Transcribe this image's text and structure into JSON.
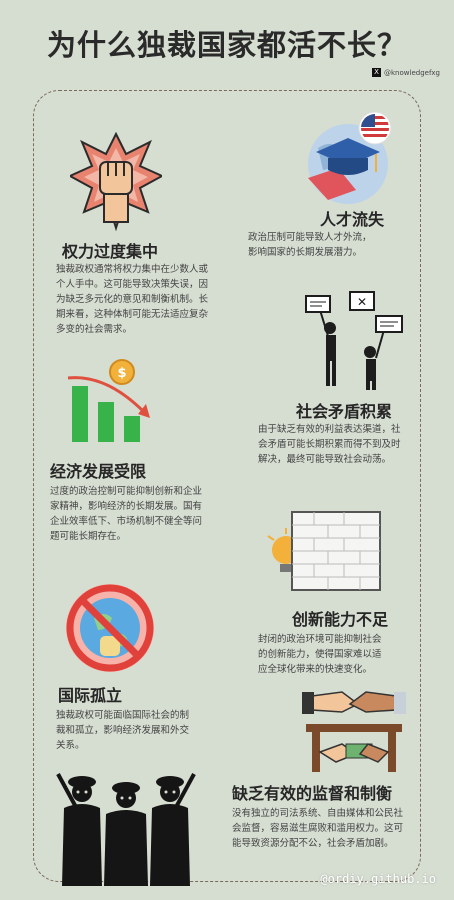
{
  "title": "为什么独裁国家都活不长？",
  "handle": "@knowledgefxg",
  "sections": [
    {
      "heading": "权力过度集中",
      "body": [
        "独裁政权通常将权力集中在少数人或",
        "个人手中。这可能导致决策失误，因",
        "为缺乏多元化的意见和制衡机制。长",
        "期来看，这种体制可能无法适应复杂",
        "多变的社会需求。"
      ]
    },
    {
      "heading": "人才流失",
      "body": [
        "政治压制可能导致人才外流，",
        "影响国家的长期发展潜力。"
      ]
    },
    {
      "heading": "社会矛盾积累",
      "body": [
        "由于缺乏有效的利益表达渠道，社",
        "会矛盾可能长期积累而得不到及时",
        "解决，最终可能导致社会动荡。"
      ]
    },
    {
      "heading": "经济发展受限",
      "body": [
        "过度的政治控制可能抑制创新和企业",
        "家精神，影响经济的长期发展。国有",
        "企业效率低下、市场机制不健全等问",
        "题可能长期存在。"
      ]
    },
    {
      "heading": "创新能力不足",
      "body": [
        "封闭的政治环境可能抑制社会",
        "的创新能力，使得国家难以适",
        "应全球化带来的快速变化。"
      ]
    },
    {
      "heading": "国际孤立",
      "body": [
        "独裁政权可能面临国际社会的制",
        "裁和孤立，影响经济发展和外交",
        "关系。"
      ]
    },
    {
      "heading": "缺乏有效的监督和制衡",
      "body": [
        "没有独立的司法系统、自由媒体和公民社",
        "会监督，容易滋生腐败和滥用权力。这可",
        "能导致资源分配不公，社会矛盾加剧。"
      ]
    }
  ],
  "watermark": "@ordiy.github.io",
  "icons": [
    "raised-fist-icon",
    "graduation-cap-globe-icon",
    "protest-signs-icon",
    "declining-bar-chart-icon",
    "lightbulb-wall-icon",
    "globe-prohibited-icon",
    "handshake-bribe-icon",
    "armed-guards-icon"
  ]
}
